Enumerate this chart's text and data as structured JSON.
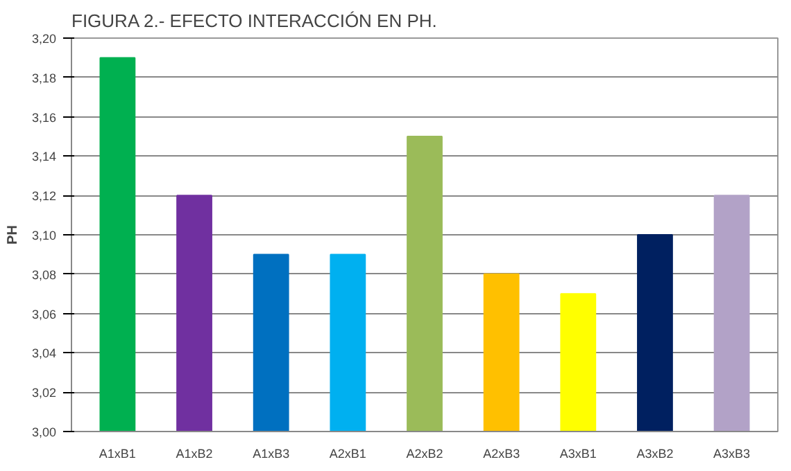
{
  "chart_data": {
    "type": "bar",
    "title": "FIGURA 2.- EFECTO INTERACCIÓN EN PH.",
    "ylabel": "PH",
    "categories": [
      "A1xB1",
      "A1xB2",
      "A1xB3",
      "A2xB1",
      "A2xB2",
      "A2xB3",
      "A3xB1",
      "A3xB2",
      "A3xB3"
    ],
    "values": [
      3.19,
      3.12,
      3.09,
      3.09,
      3.15,
      3.08,
      3.07,
      3.1,
      3.12
    ],
    "colors": [
      "#00b050",
      "#7030a0",
      "#0070c0",
      "#00b0f0",
      "#9bbb59",
      "#ffc000",
      "#ffff00",
      "#002060",
      "#b2a2c7"
    ],
    "ylim": [
      3.0,
      3.2
    ],
    "yticks": [
      {
        "value": 3.0,
        "label": "3,00"
      },
      {
        "value": 3.02,
        "label": "3,02"
      },
      {
        "value": 3.04,
        "label": "3,04"
      },
      {
        "value": 3.06,
        "label": "3,06"
      },
      {
        "value": 3.08,
        "label": "3,08"
      },
      {
        "value": 3.1,
        "label": "3,10"
      },
      {
        "value": 3.12,
        "label": "3,12"
      },
      {
        "value": 3.14,
        "label": "3,14"
      },
      {
        "value": 3.16,
        "label": "3,16"
      },
      {
        "value": 3.18,
        "label": "3,18"
      },
      {
        "value": 3.2,
        "label": "3,20"
      }
    ],
    "grid": "y"
  }
}
